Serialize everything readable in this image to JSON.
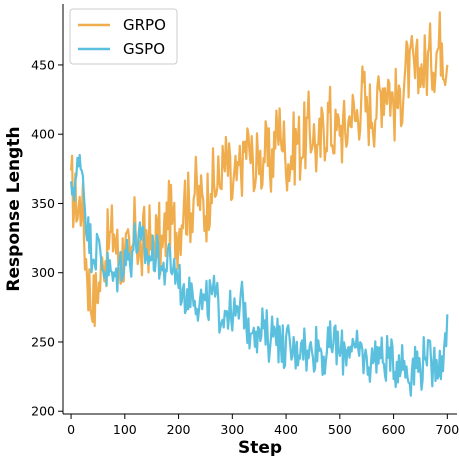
{
  "chart_data": {
    "type": "line",
    "xlabel": "Step",
    "ylabel": "Response Length",
    "xlim": [
      -15,
      718
    ],
    "ylim": [
      198,
      494
    ],
    "xticks": [
      0,
      100,
      200,
      300,
      400,
      500,
      600,
      700
    ],
    "yticks": [
      200,
      250,
      300,
      350,
      400,
      450
    ],
    "grid": false,
    "legend_position": "top-left",
    "series": [
      {
        "name": "GRPO",
        "color": "#f0ad4e",
        "x": [
          0,
          10,
          20,
          30,
          40,
          50,
          60,
          70,
          80,
          90,
          100,
          110,
          120,
          130,
          140,
          150,
          160,
          170,
          180,
          190,
          200,
          210,
          220,
          230,
          240,
          250,
          260,
          270,
          280,
          290,
          300,
          310,
          320,
          330,
          340,
          350,
          360,
          370,
          380,
          390,
          400,
          410,
          420,
          430,
          440,
          450,
          460,
          470,
          480,
          490,
          500,
          510,
          520,
          530,
          540,
          550,
          560,
          570,
          580,
          590,
          600,
          610,
          620,
          630,
          640,
          650,
          660,
          670,
          680,
          690,
          700
        ],
        "y": [
          365,
          345,
          350,
          300,
          275,
          285,
          310,
          320,
          330,
          305,
          320,
          300,
          335,
          310,
          330,
          320,
          330,
          315,
          340,
          335,
          330,
          355,
          345,
          360,
          350,
          345,
          365,
          360,
          370,
          380,
          355,
          370,
          385,
          395,
          370,
          380,
          385,
          375,
          395,
          405,
          380,
          385,
          395,
          390,
          405,
          400,
          385,
          405,
          415,
          395,
          405,
          400,
          415,
          410,
          430,
          420,
          415,
          425,
          435,
          440,
          420,
          425,
          440,
          450,
          440,
          445,
          450,
          455,
          460,
          470,
          450
        ]
      },
      {
        "name": "GSPO",
        "color": "#5bc0de",
        "x": [
          0,
          10,
          20,
          30,
          40,
          50,
          60,
          70,
          80,
          90,
          100,
          110,
          120,
          130,
          140,
          150,
          160,
          170,
          180,
          190,
          200,
          210,
          220,
          230,
          240,
          250,
          260,
          270,
          280,
          290,
          300,
          310,
          320,
          330,
          340,
          350,
          360,
          370,
          380,
          390,
          400,
          410,
          420,
          430,
          440,
          450,
          460,
          470,
          480,
          490,
          500,
          510,
          520,
          530,
          540,
          550,
          560,
          570,
          580,
          590,
          600,
          610,
          620,
          630,
          640,
          650,
          660,
          670,
          680,
          690,
          700
        ],
        "y": [
          360,
          370,
          380,
          330,
          315,
          320,
          305,
          300,
          295,
          305,
          315,
          310,
          325,
          320,
          315,
          310,
          320,
          300,
          310,
          305,
          295,
          285,
          290,
          285,
          280,
          275,
          285,
          280,
          270,
          275,
          265,
          270,
          280,
          260,
          265,
          255,
          260,
          250,
          265,
          245,
          250,
          240,
          245,
          255,
          240,
          245,
          250,
          240,
          245,
          255,
          240,
          245,
          250,
          240,
          245,
          235,
          240,
          245,
          235,
          240,
          230,
          240,
          235,
          225,
          240,
          230,
          245,
          230,
          240,
          235,
          270
        ]
      }
    ]
  }
}
